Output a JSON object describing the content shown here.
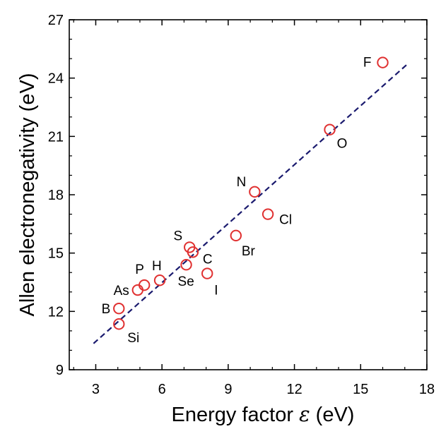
{
  "chart_data": {
    "type": "scatter",
    "xlabel": "Energy factor ",
    "xlabel_symbol": "ε",
    "xlabel_unit": " (eV)",
    "ylabel": "Allen electronegativity (eV)",
    "xlim": [
      1.8,
      18
    ],
    "ylim": [
      9,
      27
    ],
    "xticks": [
      3,
      6,
      9,
      12,
      15,
      18
    ],
    "yticks": [
      9,
      12,
      15,
      18,
      21,
      24,
      27
    ],
    "grid": false,
    "marker_color": "#e03030",
    "fit_color": "#1a1a6e",
    "points": [
      {
        "label": "F",
        "x": 16.0,
        "y": 24.8
      },
      {
        "label": "O",
        "x": 13.6,
        "y": 21.35
      },
      {
        "label": "N",
        "x": 10.2,
        "y": 18.15
      },
      {
        "label": "Cl",
        "x": 10.8,
        "y": 17.0
      },
      {
        "label": "Br",
        "x": 9.35,
        "y": 15.9
      },
      {
        "label": "S",
        "x": 7.25,
        "y": 15.3
      },
      {
        "label": "C",
        "x": 7.4,
        "y": 15.05
      },
      {
        "label": "Se",
        "x": 7.1,
        "y": 14.4
      },
      {
        "label": "I",
        "x": 8.05,
        "y": 13.95
      },
      {
        "label": "H",
        "x": 5.9,
        "y": 13.6
      },
      {
        "label": "P",
        "x": 5.2,
        "y": 13.35
      },
      {
        "label": "As",
        "x": 4.9,
        "y": 13.1
      },
      {
        "label": "B",
        "x": 4.05,
        "y": 12.15
      },
      {
        "label": "Si",
        "x": 4.05,
        "y": 11.35
      }
    ],
    "fit_line": {
      "x": [
        2.9,
        17.1
      ],
      "y": [
        10.35,
        24.7
      ]
    }
  }
}
